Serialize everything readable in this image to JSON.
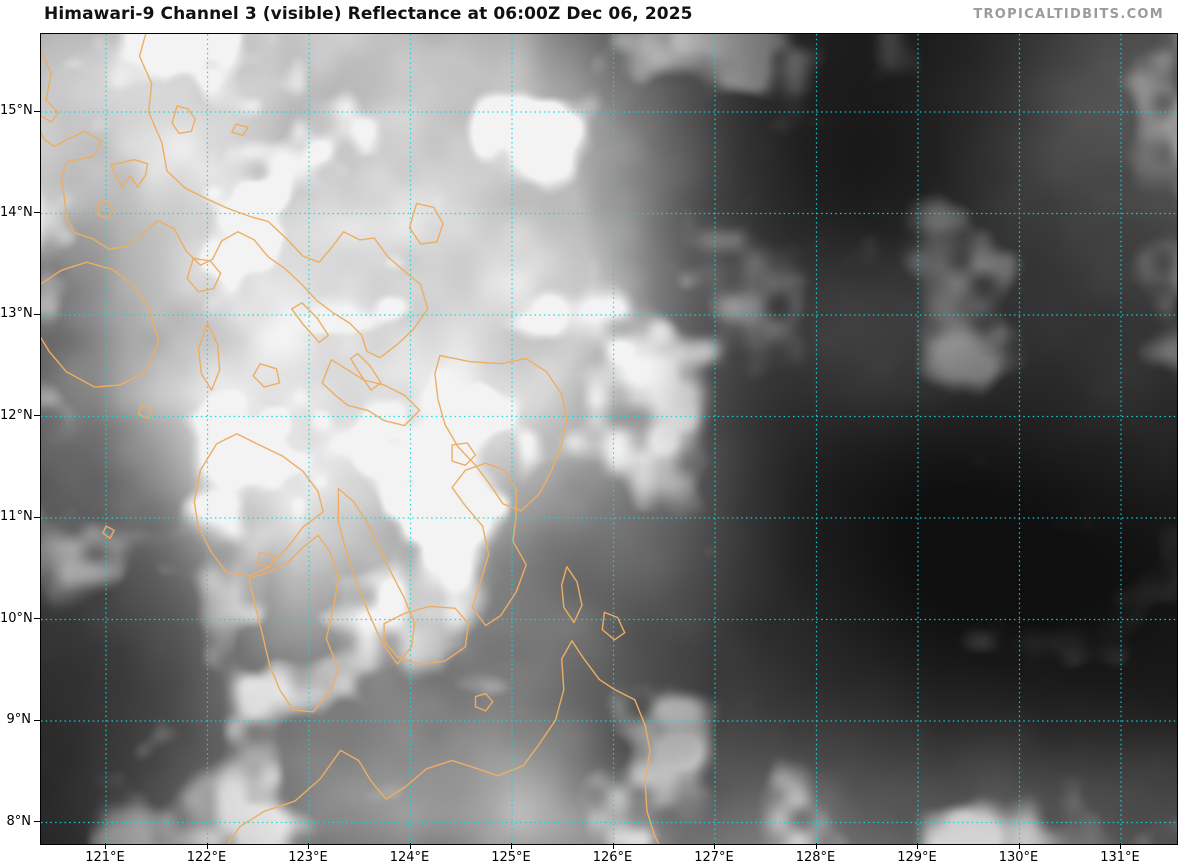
{
  "header": {
    "title": "Himawari-9 Channel 3 (visible) Reflectance at 06:00Z Dec 06, 2025",
    "brand": "TROPICALTIDBITS.COM"
  },
  "map": {
    "axis": {
      "lat_ticks": [
        "15°N",
        "14°N",
        "13°N",
        "12°N",
        "11°N",
        "10°N",
        "9°N",
        "8°N"
      ],
      "lon_ticks": [
        "121°E",
        "122°E",
        "123°E",
        "124°E",
        "125°E",
        "126°E",
        "127°E",
        "128°E",
        "129°E",
        "130°E",
        "131°E"
      ]
    },
    "colors": {
      "grid": "#12d8d8",
      "coastline": "#eead62",
      "border": "#000000",
      "title_text": "#111111",
      "brand_text": "#9b9b9b",
      "tick_text": "#000000",
      "page_background": "#ffffff"
    }
  }
}
